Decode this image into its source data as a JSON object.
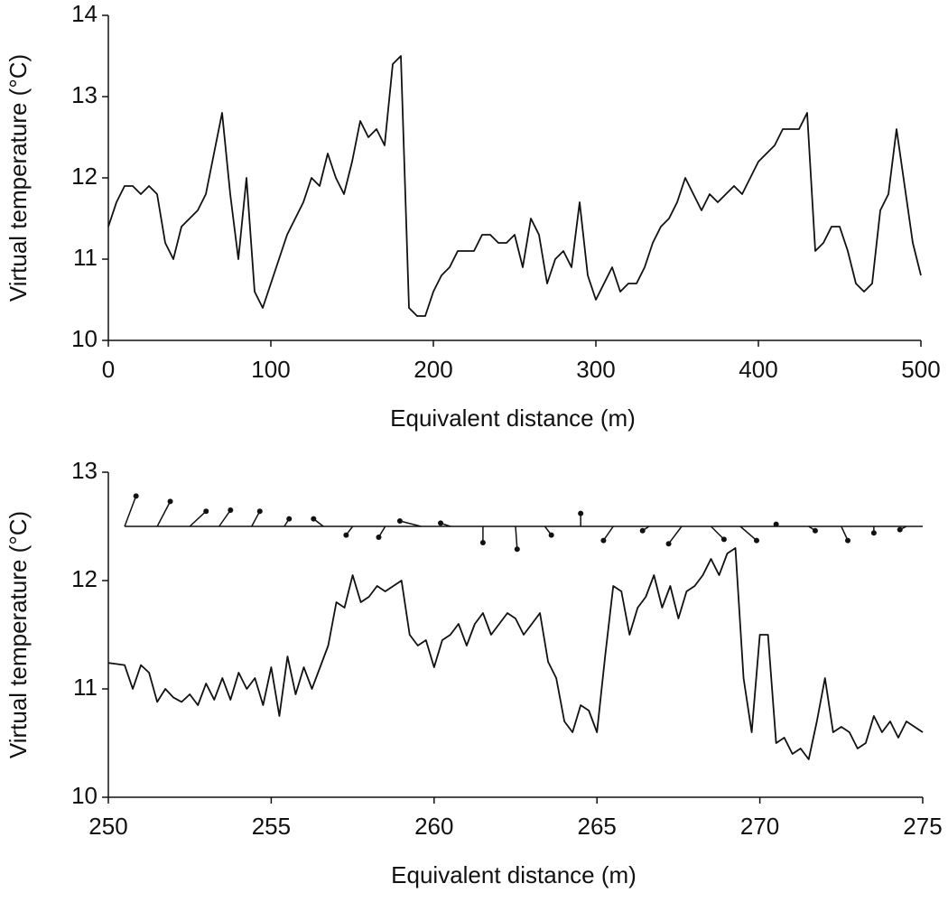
{
  "chart_data": [
    {
      "type": "line",
      "xlabel": "Equivalent distance (m)",
      "ylabel": "Virtual temperature (°C)",
      "color": "#111111",
      "xlim": [
        0,
        500
      ],
      "ylim": [
        10,
        14
      ],
      "xticks": [
        0,
        100,
        200,
        300,
        400,
        500
      ],
      "yticks": [
        10,
        11,
        12,
        13,
        14
      ],
      "x": [
        0,
        5,
        10,
        15,
        20,
        25,
        30,
        35,
        40,
        45,
        50,
        55,
        60,
        65,
        70,
        75,
        80,
        85,
        90,
        95,
        100,
        105,
        110,
        115,
        120,
        125,
        130,
        135,
        140,
        145,
        150,
        155,
        160,
        165,
        170,
        175,
        180,
        185,
        190,
        195,
        200,
        205,
        210,
        215,
        220,
        225,
        230,
        235,
        240,
        245,
        250,
        255,
        260,
        265,
        270,
        275,
        280,
        285,
        290,
        295,
        300,
        305,
        310,
        315,
        320,
        325,
        330,
        335,
        340,
        345,
        350,
        355,
        360,
        365,
        370,
        375,
        380,
        385,
        390,
        395,
        400,
        405,
        410,
        415,
        420,
        425,
        430,
        435,
        440,
        445,
        450,
        455,
        460,
        465,
        470,
        475,
        480,
        485,
        490,
        495,
        500
      ],
      "values": [
        11.4,
        11.7,
        11.9,
        11.9,
        11.8,
        11.9,
        11.8,
        11.2,
        11.0,
        11.4,
        11.5,
        11.6,
        11.8,
        12.3,
        12.8,
        11.8,
        11.0,
        12.0,
        10.6,
        10.4,
        10.7,
        11.0,
        11.3,
        11.5,
        11.7,
        12.0,
        11.9,
        12.3,
        12.0,
        11.8,
        12.2,
        12.7,
        12.5,
        12.6,
        12.4,
        13.4,
        13.5,
        10.4,
        10.3,
        10.3,
        10.6,
        10.8,
        10.9,
        11.1,
        11.1,
        11.1,
        11.3,
        11.3,
        11.2,
        11.2,
        11.3,
        10.9,
        11.5,
        11.3,
        10.7,
        11.0,
        11.1,
        10.9,
        11.7,
        10.8,
        10.5,
        10.7,
        10.9,
        10.6,
        10.7,
        10.7,
        10.9,
        11.2,
        11.4,
        11.5,
        11.7,
        12.0,
        11.8,
        11.6,
        11.8,
        11.7,
        11.8,
        11.9,
        11.8,
        12.0,
        12.2,
        12.3,
        12.4,
        12.6,
        12.6,
        12.6,
        12.8,
        11.1,
        11.2,
        11.4,
        11.4,
        11.1,
        10.7,
        10.6,
        10.7,
        11.6,
        11.8,
        12.6,
        11.9,
        11.2,
        10.8
      ]
    },
    {
      "type": "line",
      "xlabel": "Equivalent distance (m)",
      "ylabel": "Virtual temperature (°C)",
      "color": "#111111",
      "xlim": [
        250,
        275
      ],
      "ylim": [
        10,
        13
      ],
      "xticks": [
        250,
        255,
        260,
        265,
        270,
        275
      ],
      "yticks": [
        10,
        11,
        12,
        13
      ],
      "x": [
        250,
        250.25,
        250.5,
        250.75,
        251,
        251.25,
        251.5,
        251.75,
        252,
        252.25,
        252.5,
        252.75,
        253,
        253.25,
        253.5,
        253.75,
        254,
        254.25,
        254.5,
        254.75,
        255,
        255.25,
        255.5,
        255.75,
        256,
        256.25,
        256.5,
        256.75,
        257,
        257.25,
        257.5,
        257.75,
        258,
        258.25,
        258.5,
        258.75,
        259,
        259.25,
        259.5,
        259.75,
        260,
        260.25,
        260.5,
        260.75,
        261,
        261.25,
        261.5,
        261.75,
        262,
        262.25,
        262.5,
        262.75,
        263,
        263.25,
        263.5,
        263.75,
        264,
        264.25,
        264.5,
        264.75,
        265,
        265.25,
        265.5,
        265.75,
        266,
        266.25,
        266.5,
        266.75,
        267,
        267.25,
        267.5,
        267.75,
        268,
        268.25,
        268.5,
        268.75,
        269,
        269.25,
        269.5,
        269.75,
        270,
        270.25,
        270.5,
        270.75,
        271,
        271.25,
        271.5,
        271.75,
        272,
        272.25,
        272.5,
        272.75,
        273,
        273.25,
        273.5,
        273.75,
        274,
        274.25,
        274.5,
        274.75,
        275
      ],
      "values": [
        11.24,
        11.23,
        11.22,
        11.0,
        11.22,
        11.15,
        10.88,
        11.0,
        10.92,
        10.88,
        10.95,
        10.85,
        11.05,
        10.9,
        11.1,
        10.9,
        11.15,
        11.0,
        11.1,
        10.85,
        11.2,
        10.75,
        11.3,
        10.95,
        11.2,
        11.0,
        11.2,
        11.4,
        11.8,
        11.75,
        12.05,
        11.8,
        11.85,
        11.95,
        11.9,
        11.95,
        12.0,
        11.5,
        11.4,
        11.45,
        11.2,
        11.45,
        11.5,
        11.6,
        11.4,
        11.6,
        11.7,
        11.5,
        11.6,
        11.7,
        11.65,
        11.5,
        11.6,
        11.7,
        11.25,
        11.1,
        10.7,
        10.6,
        10.85,
        10.8,
        10.6,
        11.3,
        11.95,
        11.9,
        11.5,
        11.75,
        11.85,
        12.05,
        11.75,
        11.95,
        11.65,
        11.9,
        11.95,
        12.05,
        12.2,
        12.05,
        12.25,
        12.3,
        11.1,
        10.6,
        11.5,
        11.5,
        10.5,
        10.55,
        10.4,
        10.45,
        10.35,
        10.7,
        11.1,
        10.6,
        10.65,
        10.6,
        10.45,
        10.5,
        10.75,
        10.6,
        10.7,
        10.55,
        10.7,
        10.65,
        10.6
      ],
      "vectors": {
        "baseline": 12.5,
        "x0": [
          250.5,
          251.5,
          252.5,
          253.4,
          254.4,
          255.4,
          256.6,
          257.5,
          258.5,
          259.6,
          260.5,
          261.5,
          262.5,
          263.4,
          264.5,
          265.5,
          266.6,
          267.6,
          268.5,
          269.4,
          270.5,
          271.5,
          272.5,
          273.5,
          274.5
        ],
        "x": [
          250.85,
          251.9,
          253.0,
          253.75,
          254.65,
          255.55,
          256.3,
          257.3,
          258.3,
          258.95,
          260.2,
          261.5,
          262.55,
          263.6,
          264.5,
          265.2,
          266.4,
          267.2,
          268.9,
          269.9,
          270.5,
          271.7,
          272.7,
          273.5,
          274.3
        ],
        "values": [
          12.78,
          12.73,
          12.64,
          12.65,
          12.64,
          12.57,
          12.57,
          12.42,
          12.4,
          12.55,
          12.53,
          12.35,
          12.29,
          12.42,
          12.62,
          12.37,
          12.46,
          12.34,
          12.38,
          12.37,
          12.52,
          12.46,
          12.37,
          12.44,
          12.47
        ]
      }
    }
  ]
}
